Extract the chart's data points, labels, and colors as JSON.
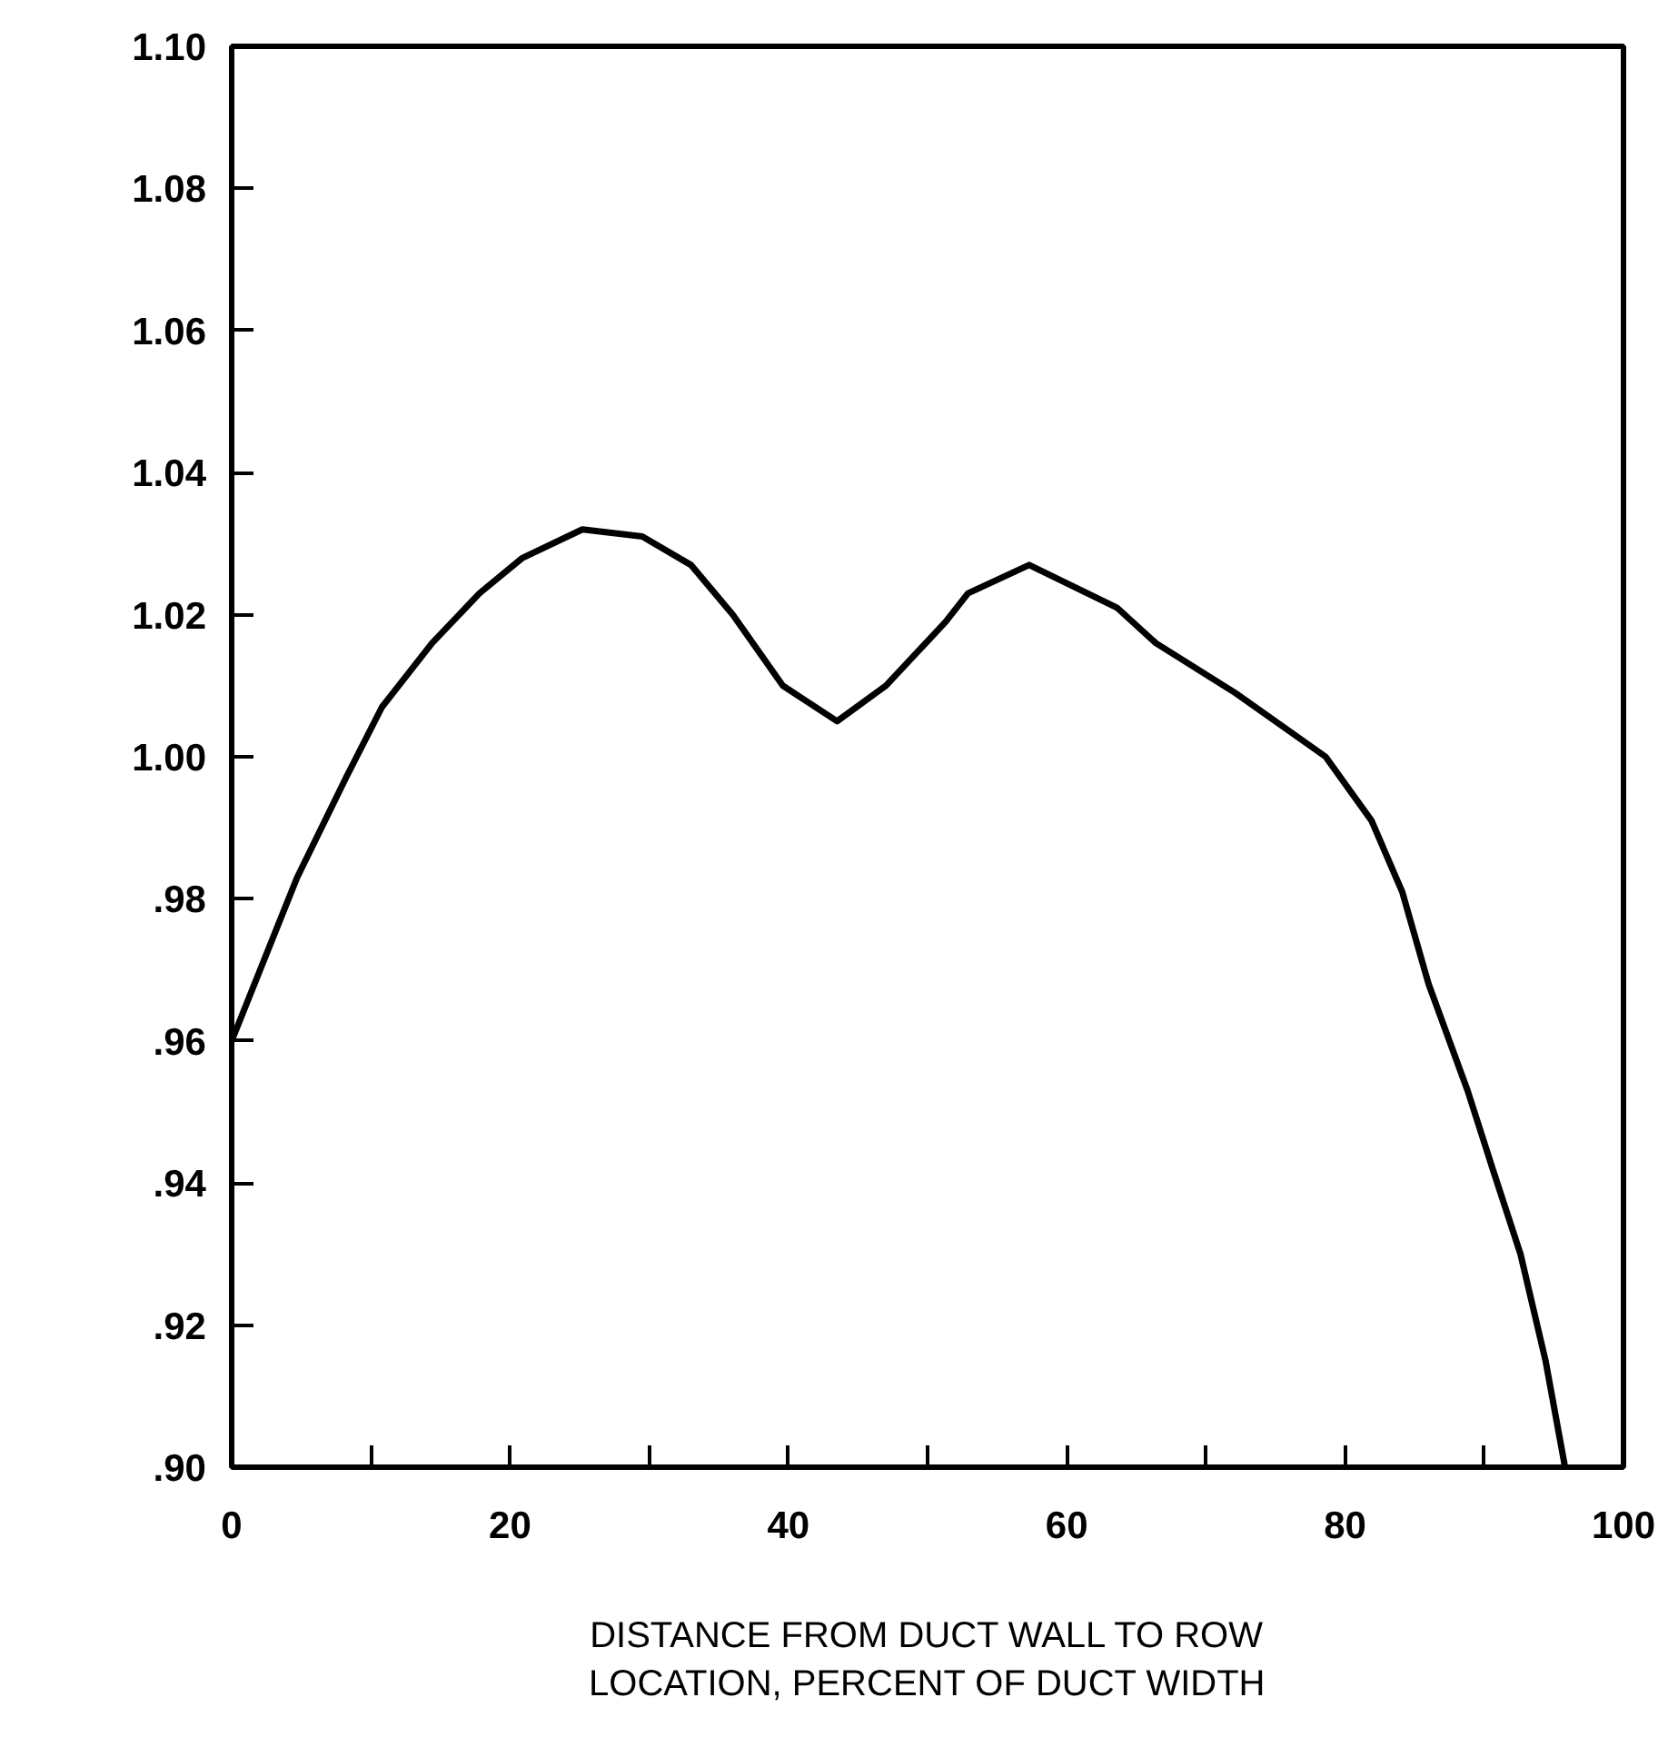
{
  "chart_data": {
    "type": "line",
    "xlabel": "DISTANCE FROM DUCT WALL TO ROW LOCATION, PERCENT OF DUCT WIDTH",
    "x": [
      0,
      4.7,
      8.2,
      10.8,
      14.4,
      17.8,
      20.9,
      25.2,
      29.5,
      33.0,
      36.0,
      39.6,
      43.5,
      47.0,
      51.3,
      52.9,
      57.3,
      63.6,
      66.4,
      72.1,
      78.6,
      81.9,
      84.1,
      86.0,
      88.8,
      90.6,
      92.6,
      94.4,
      95.8
    ],
    "series": [
      {
        "color": "#000000",
        "values": [
          0.96,
          0.983,
          0.997,
          1.007,
          1.016,
          1.023,
          1.028,
          1.032,
          1.031,
          1.027,
          1.02,
          1.01,
          1.005,
          1.01,
          1.019,
          1.023,
          1.027,
          1.021,
          1.016,
          1.009,
          1.0,
          0.991,
          0.981,
          0.968,
          0.953,
          0.942,
          0.93,
          0.915,
          0.9
        ]
      }
    ],
    "xlim": [
      0,
      100
    ],
    "ylim": [
      0.9,
      1.1
    ],
    "xticks": [
      0,
      {
        "value": 10,
        "label": null
      },
      20,
      {
        "value": 30,
        "label": null
      },
      40,
      {
        "value": 50,
        "label": null
      },
      60,
      {
        "value": 70,
        "label": null
      },
      80,
      {
        "value": 90,
        "label": null
      },
      100
    ],
    "yticks": [
      {
        "value": 0.9,
        "label": ".90"
      },
      {
        "value": 0.92,
        "label": ".92"
      },
      {
        "value": 0.94,
        "label": ".94"
      },
      {
        "value": 0.96,
        "label": ".96"
      },
      {
        "value": 0.98,
        "label": ".98"
      },
      {
        "value": 1.0,
        "label": "1.00"
      },
      {
        "value": 1.02,
        "label": "1.02"
      },
      {
        "value": 1.04,
        "label": "1.04"
      },
      {
        "value": 1.06,
        "label": "1.06"
      },
      {
        "value": 1.08,
        "label": "1.08"
      },
      {
        "value": 1.1,
        "label": "1.10"
      }
    ],
    "grid": false,
    "marker": "none",
    "line_style": "solid"
  }
}
